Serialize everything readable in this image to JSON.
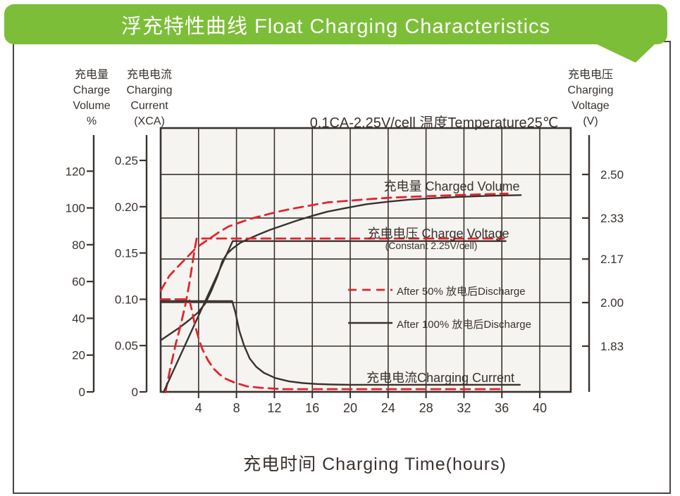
{
  "title": {
    "text": "浮充特性曲线  Float Charging Characteristics"
  },
  "colors": {
    "banner_green": "#7cbe38",
    "line_dark": "#3a322e",
    "line_red": "#e3242b",
    "plot_background": "#f5f4f1"
  },
  "chart_data": {
    "type": "line",
    "condition_header": "0.1CA-2.25V/cell   温度Temperature25℃",
    "x_axis": {
      "title": "充电时间  Charging Time(hours)",
      "unit": "hours",
      "ticks": [
        4,
        8,
        12,
        16,
        20,
        24,
        28,
        32,
        36,
        40
      ],
      "range_hours": [
        0,
        43.3
      ]
    },
    "y_axes": {
      "volume": {
        "title": [
          "充电量",
          "Charge",
          "Volume",
          "%"
        ],
        "ticks": [
          {
            "label": "120",
            "value": 120
          },
          {
            "label": "100",
            "value": 100
          },
          {
            "label": "80",
            "value": 80
          },
          {
            "label": "60",
            "value": 60
          },
          {
            "label": "40",
            "value": 40
          },
          {
            "label": "20",
            "value": 20
          },
          {
            "label": "0",
            "value": 0
          }
        ]
      },
      "current": {
        "title": [
          "充电电流",
          "Charging",
          "Current",
          "(XCA)"
        ],
        "ticks": [
          {
            "label": "0.25",
            "value": 0.25
          },
          {
            "label": "0.20",
            "value": 0.2
          },
          {
            "label": "0.15",
            "value": 0.15
          },
          {
            "label": "0.10",
            "value": 0.1
          },
          {
            "label": "0.05",
            "value": 0.05
          },
          {
            "label": "0",
            "value": 0
          }
        ]
      },
      "voltage": {
        "title": [
          "充电电压",
          "Charging",
          "Voltage",
          "(V)"
        ],
        "ticks": [
          {
            "label": "2.50",
            "value": 2.5
          },
          {
            "label": "2.33",
            "value": 2.33
          },
          {
            "label": "2.17",
            "value": 2.17
          },
          {
            "label": "2.00",
            "value": 2.0
          },
          {
            "label": "1.83",
            "value": 1.83
          }
        ]
      }
    },
    "annotations": {
      "charged_volume": "充电量 Charged Volume",
      "charge_voltage": "充电电压 Charge Voltage",
      "charge_voltage_sub": "(Constant 2.25V/cell)",
      "charging_current": "充电电流Charging Current"
    },
    "legend": [
      {
        "label": "After 50% 放电后Discharge",
        "style": "dashed",
        "color": "#e3242b"
      },
      {
        "label": "After 100% 放电后Discharge",
        "style": "solid",
        "color": "#3a322e"
      }
    ],
    "series": [
      {
        "name": "charged-volume-after-50",
        "axis": "volume",
        "unit": "%",
        "color": "#e3242b",
        "dash": true,
        "points": [
          [
            0,
            55
          ],
          [
            0.9,
            63
          ],
          [
            1.8,
            68
          ],
          [
            2.75,
            73
          ],
          [
            3.5,
            77
          ],
          [
            4.2,
            80
          ],
          [
            5.35,
            84
          ],
          [
            6.2,
            87
          ],
          [
            7.2,
            90
          ],
          [
            8.3,
            92
          ],
          [
            9.4,
            94
          ],
          [
            10.9,
            96
          ],
          [
            12.4,
            98
          ],
          [
            13.9,
            99.6
          ],
          [
            15.4,
            101
          ],
          [
            17.6,
            103
          ],
          [
            20,
            104
          ],
          [
            22,
            104.8
          ],
          [
            24,
            105.5
          ],
          [
            27,
            106.2
          ],
          [
            31.4,
            107
          ],
          [
            34,
            107.4
          ],
          [
            36.6,
            107.8
          ]
        ]
      },
      {
        "name": "charged-volume-after-100",
        "axis": "volume",
        "unit": "%",
        "color": "#3a322e",
        "dash": false,
        "points": [
          [
            0,
            28
          ],
          [
            1,
            31.5
          ],
          [
            2,
            35
          ],
          [
            3,
            39
          ],
          [
            3.9,
            43
          ],
          [
            4.7,
            48
          ],
          [
            5.35,
            55
          ],
          [
            6,
            63
          ],
          [
            6.5,
            71
          ],
          [
            7,
            75
          ],
          [
            7.6,
            78
          ],
          [
            8.4,
            81
          ],
          [
            9.2,
            83
          ],
          [
            10.3,
            85.5
          ],
          [
            11.5,
            88
          ],
          [
            12.9,
            90.5
          ],
          [
            14.3,
            93
          ],
          [
            16,
            95.7
          ],
          [
            17.6,
            98
          ],
          [
            19.6,
            100
          ],
          [
            21.7,
            102
          ],
          [
            24,
            103.4
          ],
          [
            26.2,
            104.5
          ],
          [
            28.8,
            105.3
          ],
          [
            31.4,
            106
          ],
          [
            34.7,
            106.6
          ],
          [
            38,
            107
          ]
        ]
      },
      {
        "name": "charge-voltage-after-50",
        "axis": "voltage",
        "unit": "V",
        "color": "#e3242b",
        "dash": true,
        "points": [
          [
            0.5,
            1.65
          ],
          [
            1.0,
            1.74
          ],
          [
            1.6,
            1.84
          ],
          [
            2.1,
            1.91
          ],
          [
            2.6,
            1.99
          ],
          [
            3.0,
            2.07
          ],
          [
            3.3,
            2.14
          ],
          [
            3.6,
            2.21
          ],
          [
            3.8,
            2.25
          ],
          [
            36.2,
            2.25
          ]
        ]
      },
      {
        "name": "charge-voltage-after-100",
        "axis": "voltage",
        "unit": "V",
        "color": "#3a322e",
        "dash": false,
        "points": [
          [
            0.3,
            1.65
          ],
          [
            7.6,
            2.24
          ],
          [
            36.4,
            2.24
          ]
        ]
      },
      {
        "name": "charging-current-after-50",
        "axis": "current",
        "unit": "XCA",
        "color": "#e3242b",
        "dash": true,
        "points": [
          [
            0,
            0.1
          ],
          [
            3,
            0.1
          ],
          [
            3.3,
            0.088
          ],
          [
            3.6,
            0.073
          ],
          [
            4.0,
            0.058
          ],
          [
            4.4,
            0.046
          ],
          [
            5.0,
            0.034
          ],
          [
            5.6,
            0.025
          ],
          [
            6.2,
            0.019
          ],
          [
            6.9,
            0.014
          ],
          [
            7.8,
            0.01
          ],
          [
            9.1,
            0.006
          ],
          [
            10.5,
            0.0045
          ],
          [
            12.8,
            0.003
          ],
          [
            36.2,
            0.003
          ]
        ]
      },
      {
        "name": "charging-current-after-100",
        "axis": "current",
        "unit": "XCA",
        "color": "#3a322e",
        "dash": false,
        "points": [
          [
            0,
            0.098
          ],
          [
            7.55,
            0.098
          ],
          [
            7.9,
            0.085
          ],
          [
            8.3,
            0.066
          ],
          [
            8.8,
            0.05
          ],
          [
            9.4,
            0.036
          ],
          [
            10.1,
            0.027
          ],
          [
            10.9,
            0.0205
          ],
          [
            12.1,
            0.015
          ],
          [
            13.5,
            0.0115
          ],
          [
            15,
            0.0095
          ],
          [
            16.5,
            0.0085
          ],
          [
            18,
            0.008
          ],
          [
            20,
            0.0077
          ],
          [
            37.9,
            0.0077
          ]
        ]
      }
    ]
  }
}
